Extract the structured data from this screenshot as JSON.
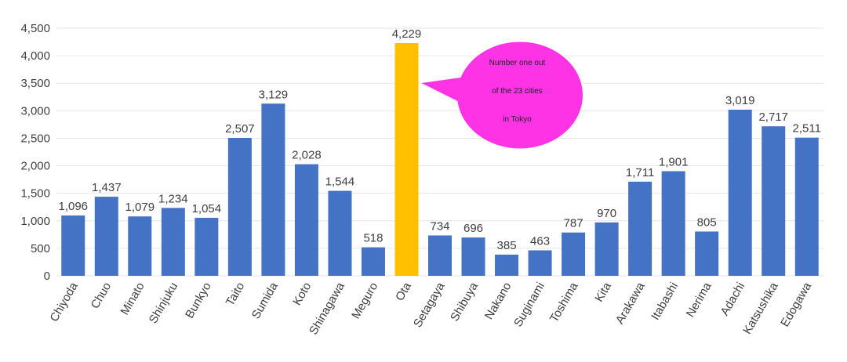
{
  "chart_data": {
    "type": "bar",
    "categories": [
      "Chiyoda",
      "Chuo",
      "Minato",
      "Shinjuku",
      "Bunkyo",
      "Taito",
      "Sumida",
      "Koto",
      "Shinagawa",
      "Meguro",
      "Ota",
      "Setagaya",
      "Shibuya",
      "Nakano",
      "Suginami",
      "Toshima",
      "Kita",
      "Arakawa",
      "Itabashi",
      "Nerima",
      "Adachi",
      "Katsushika",
      "Edogawa"
    ],
    "values": [
      1096,
      1437,
      1079,
      1234,
      1054,
      2507,
      3129,
      2028,
      1544,
      518,
      4229,
      734,
      696,
      385,
      463,
      787,
      970,
      1711,
      1901,
      805,
      3019,
      2717,
      2511
    ],
    "data_labels": [
      "1,096",
      "1,437",
      "1,079",
      "1,234",
      "1,054",
      "2,507",
      "3,129",
      "2,028",
      "1,544",
      "518",
      "4,229",
      "734",
      "696",
      "385",
      "463",
      "787",
      "970",
      "1,711",
      "1,901",
      "805",
      "3,019",
      "2,717",
      "2,511"
    ],
    "highlight_index": 10,
    "colors": {
      "bar": "#4472c4",
      "highlight": "#ffc000",
      "callout": "#ff33e6",
      "grid": "#e6e6e6"
    },
    "ylim": [
      0,
      4500
    ],
    "yticks": [
      0,
      500,
      1000,
      1500,
      2000,
      2500,
      3000,
      3500,
      4000,
      4500
    ],
    "ytick_labels": [
      "0",
      "500",
      "1,000",
      "1,500",
      "2,000",
      "2,500",
      "3,000",
      "3,500",
      "4,000",
      "4,500"
    ],
    "grid": true,
    "title": "",
    "xlabel": "",
    "ylabel": "",
    "annotation": {
      "lines": [
        "Number one out",
        "of the 23 cities",
        "in Tokyo"
      ]
    }
  }
}
